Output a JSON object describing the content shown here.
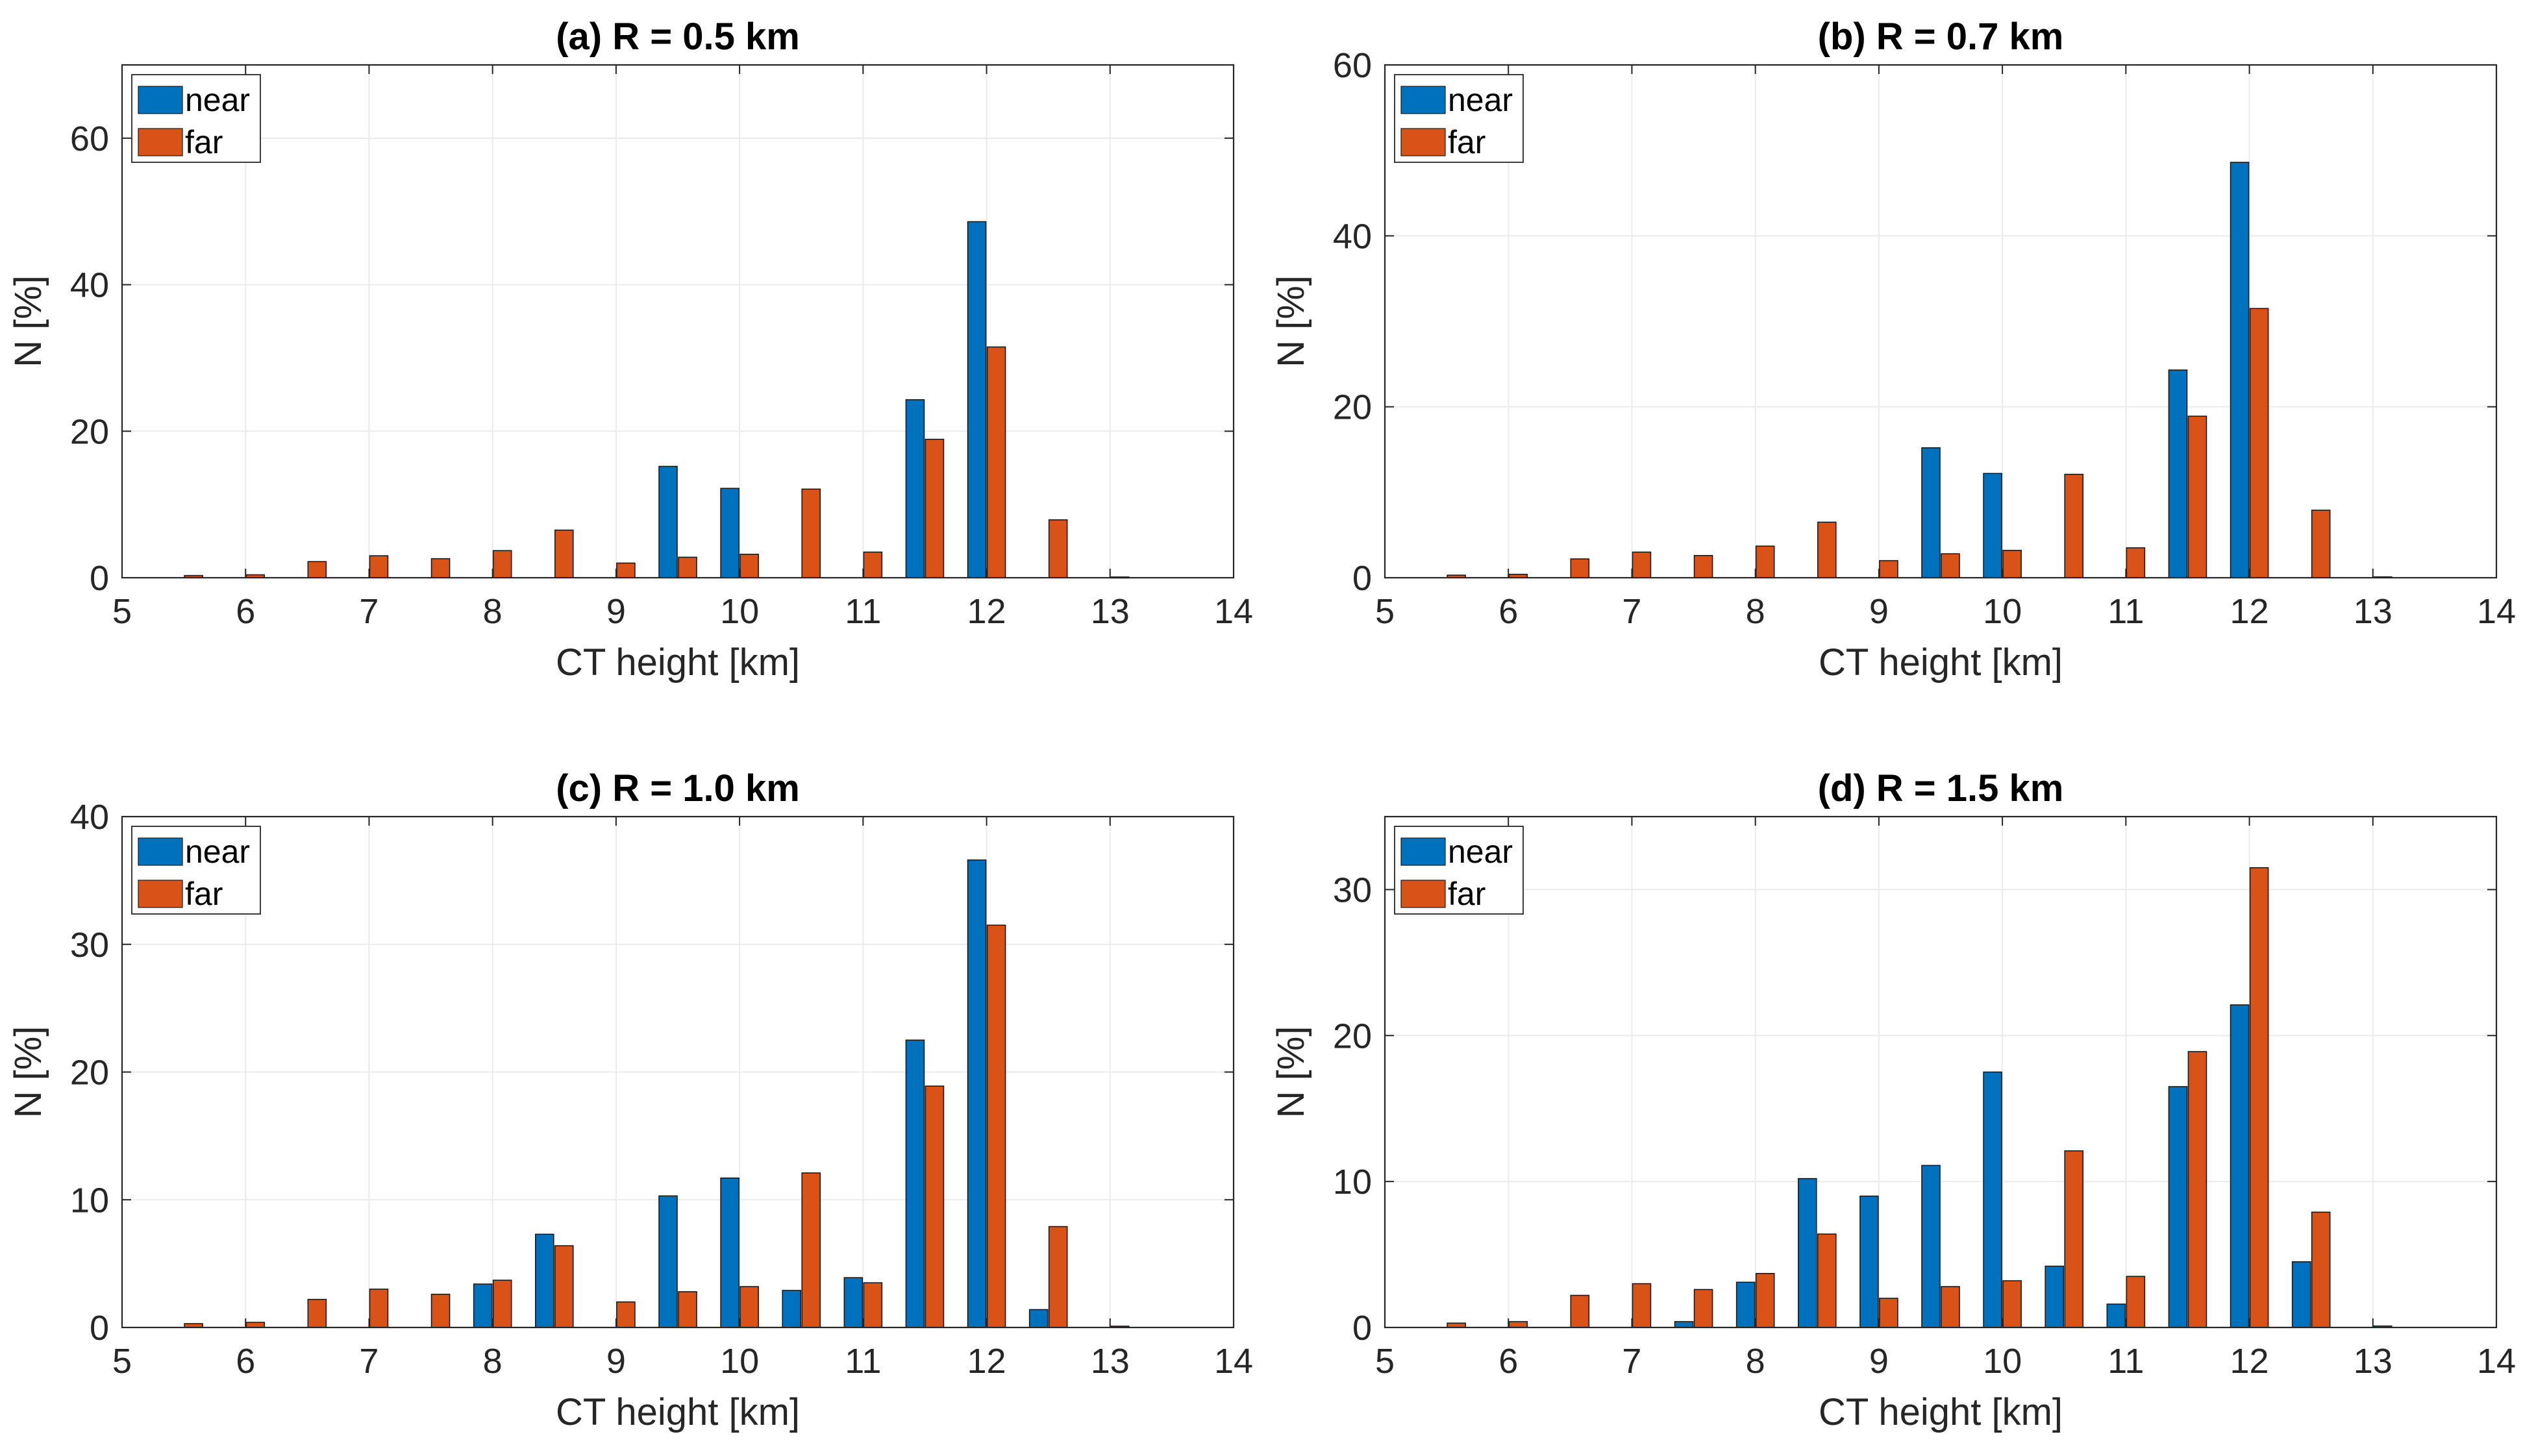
{
  "chart_data": [
    {
      "type": "bar",
      "title": "(a) R = 0.5 km",
      "xlabel": "CT height [km]",
      "ylabel": "N [%]",
      "xlim": [
        5,
        14
      ],
      "ylim": [
        0,
        70
      ],
      "xticks": [
        5,
        6,
        7,
        8,
        9,
        10,
        11,
        12,
        13,
        14
      ],
      "yticks": [
        0,
        20,
        40,
        60
      ],
      "grid": true,
      "legend_position": "top-left",
      "x": [
        5.5,
        6.0,
        6.5,
        7.0,
        7.5,
        8.0,
        8.5,
        9.0,
        9.5,
        10.0,
        10.5,
        11.0,
        11.5,
        12.0,
        12.5,
        13.0,
        13.5
      ],
      "series": [
        {
          "name": "near",
          "color": "#0072BD",
          "values": [
            0,
            0,
            0,
            0,
            0,
            0,
            0,
            0,
            15.2,
            12.2,
            0,
            0,
            24.3,
            48.6,
            0,
            0,
            0
          ]
        },
        {
          "name": "far",
          "color": "#D95319",
          "values": [
            0.3,
            0.4,
            2.2,
            3.0,
            2.6,
            3.7,
            6.5,
            2.0,
            2.8,
            3.2,
            12.1,
            3.5,
            18.9,
            31.5,
            7.9,
            0.1,
            0
          ]
        }
      ]
    },
    {
      "type": "bar",
      "title": "(b) R = 0.7 km",
      "xlabel": "CT height [km]",
      "ylabel": "N [%]",
      "xlim": [
        5,
        14
      ],
      "ylim": [
        0,
        60
      ],
      "xticks": [
        5,
        6,
        7,
        8,
        9,
        10,
        11,
        12,
        13,
        14
      ],
      "yticks": [
        0,
        20,
        40,
        60
      ],
      "grid": true,
      "legend_position": "top-left",
      "x": [
        5.5,
        6.0,
        6.5,
        7.0,
        7.5,
        8.0,
        8.5,
        9.0,
        9.5,
        10.0,
        10.5,
        11.0,
        11.5,
        12.0,
        12.5,
        13.0,
        13.5
      ],
      "series": [
        {
          "name": "near",
          "color": "#0072BD",
          "values": [
            0,
            0,
            0,
            0,
            0,
            0,
            0,
            0,
            15.2,
            12.2,
            0,
            0,
            24.3,
            48.6,
            0,
            0,
            0
          ]
        },
        {
          "name": "far",
          "color": "#D95319",
          "values": [
            0.3,
            0.4,
            2.2,
            3.0,
            2.6,
            3.7,
            6.5,
            2.0,
            2.8,
            3.2,
            12.1,
            3.5,
            18.9,
            31.5,
            7.9,
            0.1,
            0
          ]
        }
      ]
    },
    {
      "type": "bar",
      "title": "(c) R = 1.0 km",
      "xlabel": "CT height [km]",
      "ylabel": "N [%]",
      "xlim": [
        5,
        14
      ],
      "ylim": [
        0,
        40
      ],
      "xticks": [
        5,
        6,
        7,
        8,
        9,
        10,
        11,
        12,
        13,
        14
      ],
      "yticks": [
        0,
        10,
        20,
        30,
        40
      ],
      "grid": true,
      "legend_position": "top-left",
      "x": [
        5.5,
        6.0,
        6.5,
        7.0,
        7.5,
        8.0,
        8.5,
        9.0,
        9.5,
        10.0,
        10.5,
        11.0,
        11.5,
        12.0,
        12.5,
        13.0,
        13.5
      ],
      "series": [
        {
          "name": "near",
          "color": "#0072BD",
          "values": [
            0,
            0,
            0,
            0,
            0,
            3.4,
            7.3,
            0,
            10.3,
            11.7,
            2.9,
            3.9,
            22.5,
            36.6,
            1.4,
            0,
            0
          ]
        },
        {
          "name": "far",
          "color": "#D95319",
          "values": [
            0.3,
            0.4,
            2.2,
            3.0,
            2.6,
            3.7,
            6.4,
            2.0,
            2.8,
            3.2,
            12.1,
            3.5,
            18.9,
            31.5,
            7.9,
            0.1,
            0
          ]
        }
      ]
    },
    {
      "type": "bar",
      "title": "(d) R = 1.5 km",
      "xlabel": "CT height [km]",
      "ylabel": "N [%]",
      "xlim": [
        5,
        14
      ],
      "ylim": [
        0,
        35
      ],
      "xticks": [
        5,
        6,
        7,
        8,
        9,
        10,
        11,
        12,
        13,
        14
      ],
      "yticks": [
        0,
        10,
        20,
        30
      ],
      "grid": true,
      "legend_position": "top-left",
      "x": [
        5.5,
        6.0,
        6.5,
        7.0,
        7.5,
        8.0,
        8.5,
        9.0,
        9.5,
        10.0,
        10.5,
        11.0,
        11.5,
        12.0,
        12.5,
        13.0,
        13.5
      ],
      "series": [
        {
          "name": "near",
          "color": "#0072BD",
          "values": [
            0,
            0,
            0,
            0,
            0.4,
            3.1,
            10.2,
            9.0,
            11.1,
            17.5,
            4.2,
            1.6,
            16.5,
            22.1,
            4.5,
            0,
            0
          ]
        },
        {
          "name": "far",
          "color": "#D95319",
          "values": [
            0.3,
            0.4,
            2.2,
            3.0,
            2.6,
            3.7,
            6.4,
            2.0,
            2.8,
            3.2,
            12.1,
            3.5,
            18.9,
            31.5,
            7.9,
            0.1,
            0
          ]
        }
      ]
    }
  ]
}
